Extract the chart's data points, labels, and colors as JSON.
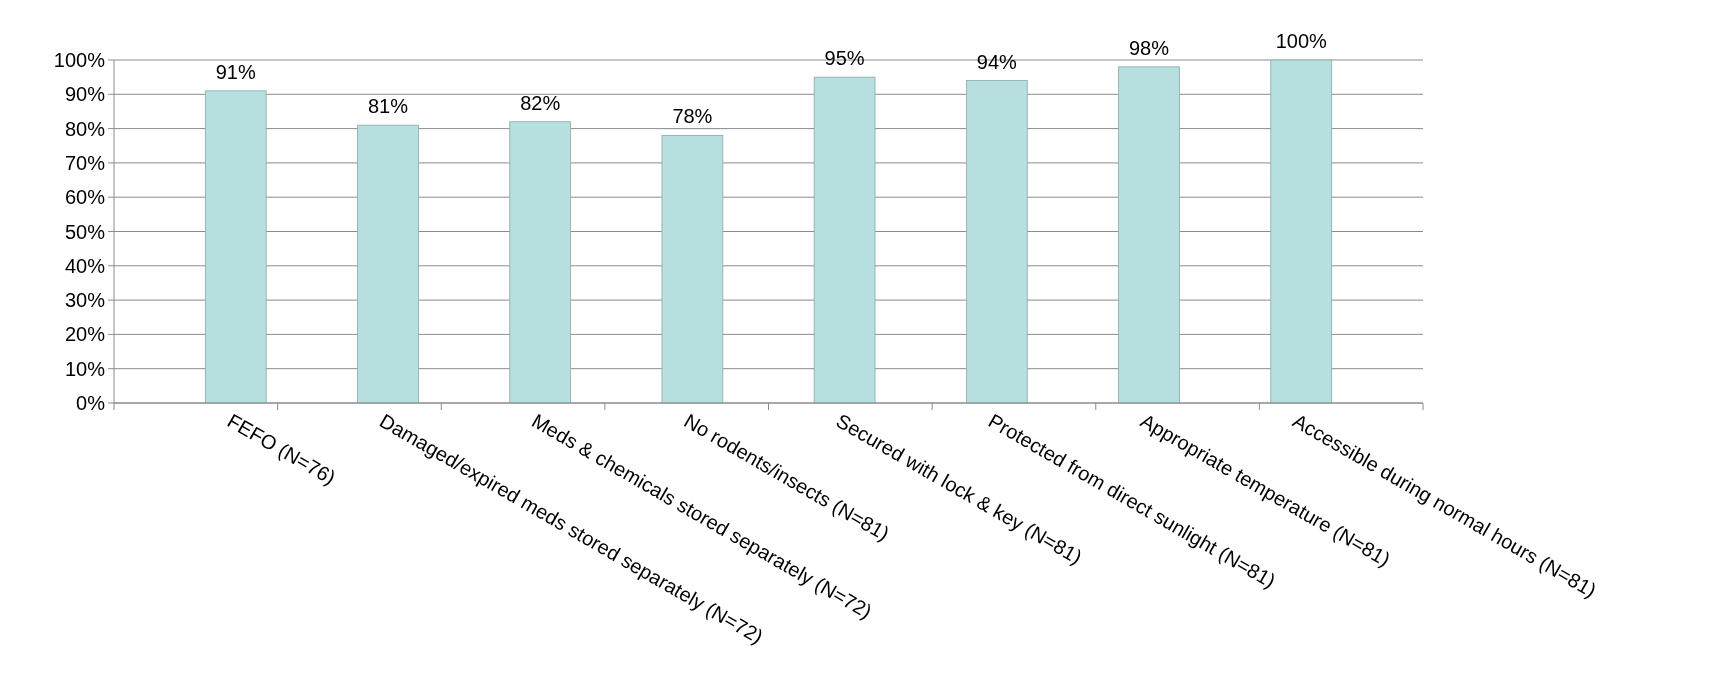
{
  "chart_data": {
    "type": "bar",
    "categories": [
      "FEFO (N=76)",
      "Damaged/expired meds stored separately (N=72)",
      "Meds & chemicals stored separately (N=72)",
      "No rodents/insects (N=81)",
      "Secured with lock & key (N=81)",
      "Protected from direct sunlight (N=81)",
      "Appropriate temperature (N=81)",
      "Accessible during normal hours (N=81)"
    ],
    "values": [
      91,
      81,
      82,
      78,
      95,
      94,
      98,
      100
    ],
    "value_labels": [
      "91%",
      "81%",
      "82%",
      "78%",
      "95%",
      "94%",
      "98%",
      "100%"
    ],
    "color": "#b7dfe0",
    "ylim": [
      0,
      100
    ],
    "yticks": [
      {
        "value": 0,
        "label": "0%"
      },
      {
        "value": 10,
        "label": "10%"
      },
      {
        "value": 20,
        "label": "20%"
      },
      {
        "value": 30,
        "label": "30%"
      },
      {
        "value": 40,
        "label": "40%"
      },
      {
        "value": 50,
        "label": "50%"
      },
      {
        "value": 60,
        "label": "60%"
      },
      {
        "value": 70,
        "label": "70%"
      },
      {
        "value": 80,
        "label": "80%"
      },
      {
        "value": 90,
        "label": "90%"
      },
      {
        "value": 100,
        "label": "100%"
      }
    ],
    "grid": "y"
  }
}
